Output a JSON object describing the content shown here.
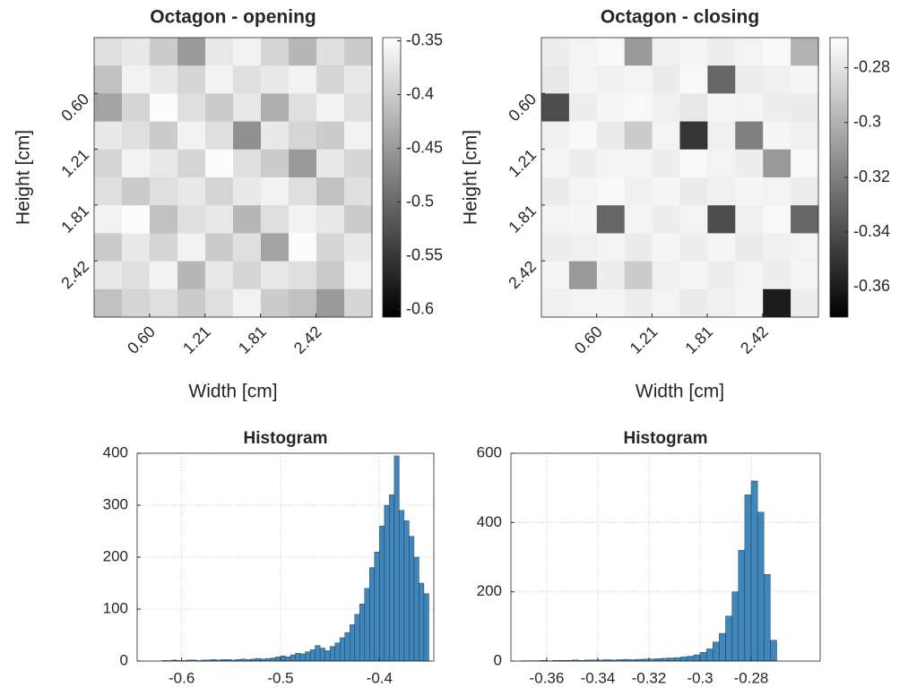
{
  "chart_data": [
    {
      "type": "heatmap",
      "title": "Octagon - opening",
      "xlabel": "Width [cm]",
      "ylabel": "Height [cm]",
      "xlim": [
        0,
        3.03
      ],
      "ylim": [
        0,
        3.03
      ],
      "xticks": [
        {
          "value": 0.605,
          "label": "0.60"
        },
        {
          "value": 1.21,
          "label": "1.21"
        },
        {
          "value": 1.815,
          "label": "1.81"
        },
        {
          "value": 2.42,
          "label": "2.42"
        }
      ],
      "yticks": [
        {
          "value": 0.605,
          "label": "0.60"
        },
        {
          "value": 1.21,
          "label": "1.21"
        },
        {
          "value": 1.815,
          "label": "1.81"
        },
        {
          "value": 2.42,
          "label": "2.42"
        }
      ],
      "clim": [
        -0.607,
        -0.347
      ],
      "cticks": [
        -0.35,
        -0.4,
        -0.45,
        -0.5,
        -0.55,
        -0.6
      ],
      "z": [
        [
          -0.38,
          -0.37,
          -0.4,
          -0.45,
          -0.37,
          -0.36,
          -0.39,
          -0.42,
          -0.38,
          -0.4
        ],
        [
          -0.41,
          -0.36,
          -0.37,
          -0.39,
          -0.36,
          -0.38,
          -0.37,
          -0.36,
          -0.39,
          -0.37
        ],
        [
          -0.44,
          -0.39,
          -0.35,
          -0.38,
          -0.4,
          -0.37,
          -0.43,
          -0.38,
          -0.36,
          -0.38
        ],
        [
          -0.37,
          -0.38,
          -0.4,
          -0.36,
          -0.38,
          -0.46,
          -0.37,
          -0.39,
          -0.4,
          -0.36
        ],
        [
          -0.39,
          -0.36,
          -0.37,
          -0.39,
          -0.35,
          -0.38,
          -0.4,
          -0.45,
          -0.37,
          -0.39
        ],
        [
          -0.38,
          -0.4,
          -0.38,
          -0.37,
          -0.39,
          -0.37,
          -0.36,
          -0.38,
          -0.41,
          -0.38
        ],
        [
          -0.36,
          -0.35,
          -0.41,
          -0.38,
          -0.37,
          -0.42,
          -0.38,
          -0.36,
          -0.37,
          -0.4
        ],
        [
          -0.4,
          -0.37,
          -0.39,
          -0.36,
          -0.4,
          -0.38,
          -0.44,
          -0.35,
          -0.39,
          -0.37
        ],
        [
          -0.37,
          -0.38,
          -0.36,
          -0.42,
          -0.37,
          -0.39,
          -0.37,
          -0.38,
          -0.4,
          -0.36
        ],
        [
          -0.41,
          -0.39,
          -0.38,
          -0.4,
          -0.38,
          -0.36,
          -0.4,
          -0.41,
          -0.45,
          -0.39
        ]
      ]
    },
    {
      "type": "heatmap",
      "title": "Octagon - closing",
      "xlabel": "Width [cm]",
      "ylabel": "Height [cm]",
      "xlim": [
        0,
        3.03
      ],
      "ylim": [
        0,
        3.03
      ],
      "xticks": [
        {
          "value": 0.605,
          "label": "0.60"
        },
        {
          "value": 1.21,
          "label": "1.21"
        },
        {
          "value": 1.815,
          "label": "1.81"
        },
        {
          "value": 2.42,
          "label": "2.42"
        }
      ],
      "yticks": [
        {
          "value": 0.605,
          "label": "0.60"
        },
        {
          "value": 1.21,
          "label": "1.21"
        },
        {
          "value": 1.815,
          "label": "1.81"
        },
        {
          "value": 2.42,
          "label": "2.42"
        }
      ],
      "clim": [
        -0.371,
        -0.269
      ],
      "cticks": [
        -0.28,
        -0.3,
        -0.32,
        -0.34,
        -0.36
      ],
      "z": [
        [
          -0.276,
          -0.274,
          -0.272,
          -0.31,
          -0.275,
          -0.273,
          -0.276,
          -0.274,
          -0.272,
          -0.3
        ],
        [
          -0.278,
          -0.273,
          -0.275,
          -0.274,
          -0.277,
          -0.272,
          -0.33,
          -0.276,
          -0.275,
          -0.273
        ],
        [
          -0.34,
          -0.276,
          -0.273,
          -0.272,
          -0.275,
          -0.278,
          -0.273,
          -0.274,
          -0.276,
          -0.277
        ],
        [
          -0.275,
          -0.272,
          -0.277,
          -0.29,
          -0.274,
          -0.35,
          -0.275,
          -0.32,
          -0.273,
          -0.275
        ],
        [
          -0.273,
          -0.276,
          -0.274,
          -0.273,
          -0.276,
          -0.272,
          -0.274,
          -0.276,
          -0.31,
          -0.272
        ],
        [
          -0.277,
          -0.274,
          -0.272,
          -0.275,
          -0.273,
          -0.277,
          -0.275,
          -0.273,
          -0.274,
          -0.276
        ],
        [
          -0.274,
          -0.273,
          -0.33,
          -0.274,
          -0.276,
          -0.274,
          -0.34,
          -0.275,
          -0.272,
          -0.33
        ],
        [
          -0.276,
          -0.275,
          -0.274,
          -0.277,
          -0.273,
          -0.276,
          -0.273,
          -0.277,
          -0.275,
          -0.274
        ],
        [
          -0.273,
          -0.31,
          -0.276,
          -0.29,
          -0.275,
          -0.273,
          -0.276,
          -0.274,
          -0.276,
          -0.273
        ],
        [
          -0.275,
          -0.274,
          -0.273,
          -0.276,
          -0.274,
          -0.277,
          -0.275,
          -0.273,
          -0.36,
          -0.276
        ]
      ]
    },
    {
      "type": "histogram",
      "title": "Histogram",
      "color": "#3f86bb",
      "grid": true,
      "xlim": [
        -0.645,
        -0.345
      ],
      "ylim": [
        0,
        400
      ],
      "xticks": [
        -0.6,
        -0.5,
        -0.4
      ],
      "yticks": [
        0,
        100,
        200,
        300,
        400
      ],
      "bins": [
        -0.62,
        -0.615,
        -0.61,
        -0.605,
        -0.6,
        -0.595,
        -0.59,
        -0.585,
        -0.58,
        -0.575,
        -0.57,
        -0.565,
        -0.56,
        -0.555,
        -0.55,
        -0.545,
        -0.54,
        -0.535,
        -0.53,
        -0.525,
        -0.52,
        -0.515,
        -0.51,
        -0.505,
        -0.5,
        -0.495,
        -0.49,
        -0.485,
        -0.48,
        -0.475,
        -0.47,
        -0.465,
        -0.46,
        -0.455,
        -0.45,
        -0.445,
        -0.44,
        -0.435,
        -0.43,
        -0.425,
        -0.42,
        -0.415,
        -0.41,
        -0.405,
        -0.4,
        -0.395,
        -0.39,
        -0.385,
        -0.38,
        -0.375,
        -0.37,
        -0.365,
        -0.36,
        -0.355,
        -0.35
      ],
      "values": [
        1,
        1,
        2,
        1,
        1,
        2,
        2,
        1,
        2,
        2,
        3,
        2,
        3,
        3,
        2,
        3,
        4,
        3,
        4,
        5,
        4,
        5,
        6,
        8,
        10,
        8,
        12,
        15,
        14,
        18,
        22,
        30,
        25,
        20,
        28,
        35,
        45,
        55,
        70,
        90,
        110,
        140,
        180,
        210,
        260,
        300,
        320,
        395,
        290,
        270,
        240,
        200,
        150,
        130
      ]
    },
    {
      "type": "histogram",
      "title": "Histogram",
      "color": "#3f86bb",
      "grid": true,
      "xlim": [
        -0.374,
        -0.253
      ],
      "ylim": [
        0,
        600
      ],
      "xticks": [
        -0.36,
        -0.34,
        -0.32,
        -0.3,
        -0.28
      ],
      "yticks": [
        0,
        200,
        400,
        600
      ],
      "bins": [
        -0.37,
        -0.3675,
        -0.365,
        -0.3625,
        -0.36,
        -0.3575,
        -0.355,
        -0.3525,
        -0.35,
        -0.3475,
        -0.345,
        -0.3425,
        -0.34,
        -0.3375,
        -0.335,
        -0.3325,
        -0.33,
        -0.3275,
        -0.325,
        -0.3225,
        -0.32,
        -0.3175,
        -0.315,
        -0.3125,
        -0.31,
        -0.3075,
        -0.305,
        -0.3025,
        -0.3,
        -0.2975,
        -0.295,
        -0.2925,
        -0.29,
        -0.2875,
        -0.285,
        -0.2825,
        -0.28,
        -0.2775,
        -0.275,
        -0.2725,
        -0.27
      ],
      "values": [
        1,
        1,
        1,
        2,
        1,
        2,
        2,
        2,
        3,
        2,
        3,
        3,
        3,
        4,
        3,
        4,
        5,
        4,
        5,
        6,
        6,
        7,
        8,
        9,
        10,
        12,
        14,
        18,
        25,
        35,
        55,
        80,
        130,
        200,
        320,
        480,
        520,
        430,
        250,
        60
      ]
    }
  ]
}
